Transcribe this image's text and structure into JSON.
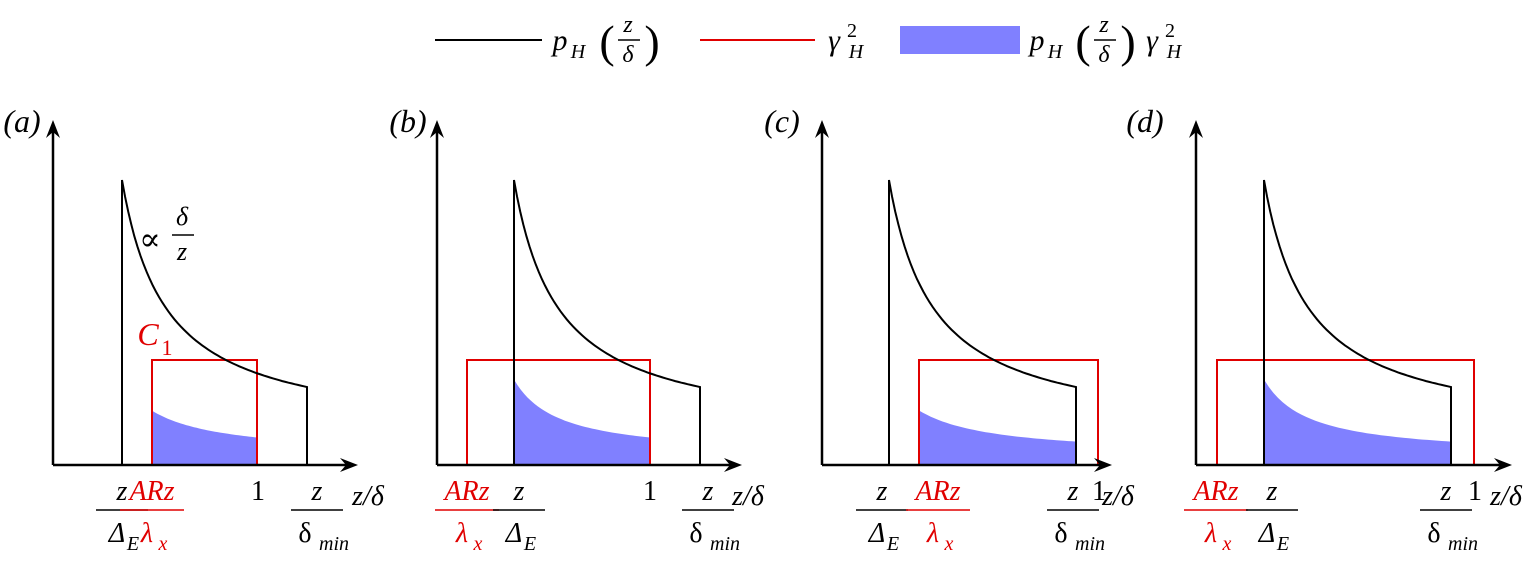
{
  "legend": {
    "items": [
      {
        "id": "pH",
        "label_main": "p",
        "label_sub": "H",
        "frac_num": "z",
        "frac_den": "δ",
        "color": "#000000",
        "style": "line"
      },
      {
        "id": "gamma",
        "label_main": "γ",
        "label_sup": "2",
        "label_sub": "H",
        "color": "#e00000",
        "style": "line"
      },
      {
        "id": "product",
        "label_main": "p",
        "label_sub": "H",
        "frac_num": "z",
        "frac_den": "δ",
        "tail_main": "γ",
        "tail_sup": "2",
        "tail_sub": "H",
        "color": "#8080ff",
        "style": "fill"
      }
    ]
  },
  "colors": {
    "black": "#000000",
    "red": "#e00000",
    "blue": "#8080ff"
  },
  "panels": [
    {
      "id": "a",
      "label": "(a)",
      "curve_label": {
        "prop": "∝",
        "num": "δ",
        "den": "z"
      },
      "red_label": {
        "main": "C",
        "sub": "1"
      },
      "ticks": [
        {
          "num": "z",
          "den_main": "Δ",
          "den_sub": "E",
          "color": "black"
        },
        {
          "num": "ARz",
          "den_main": "λ",
          "den_sub": "x",
          "color": "red"
        },
        {
          "one": "1",
          "color": "black"
        },
        {
          "num": "z",
          "den_main": "δ",
          "den_sub": "min",
          "color": "black"
        }
      ],
      "axis_label": "z/δ"
    },
    {
      "id": "b",
      "label": "(b)",
      "ticks": [
        {
          "num": "ARz",
          "den_main": "λ",
          "den_sub": "x",
          "color": "red"
        },
        {
          "num": "z",
          "den_main": "Δ",
          "den_sub": "E",
          "color": "black"
        },
        {
          "one": "1",
          "color": "black"
        },
        {
          "num": "z",
          "den_main": "δ",
          "den_sub": "min",
          "color": "black"
        }
      ],
      "axis_label": "z/δ"
    },
    {
      "id": "c",
      "label": "(c)",
      "ticks": [
        {
          "num": "z",
          "den_main": "Δ",
          "den_sub": "E",
          "color": "black"
        },
        {
          "num": "ARz",
          "den_main": "λ",
          "den_sub": "x",
          "color": "red"
        },
        {
          "num": "z",
          "den_main": "δ",
          "den_sub": "min",
          "color": "black"
        },
        {
          "one": "1",
          "color": "black"
        }
      ],
      "axis_label": "z/δ"
    },
    {
      "id": "d",
      "label": "(d)",
      "ticks": [
        {
          "num": "ARz",
          "den_main": "λ",
          "den_sub": "x",
          "color": "red"
        },
        {
          "num": "z",
          "den_main": "Δ",
          "den_sub": "E",
          "color": "black"
        },
        {
          "num": "z",
          "den_main": "δ",
          "den_sub": "min",
          "color": "black"
        },
        {
          "one": "1",
          "color": "black"
        }
      ],
      "axis_label": "z/δ"
    }
  ]
}
